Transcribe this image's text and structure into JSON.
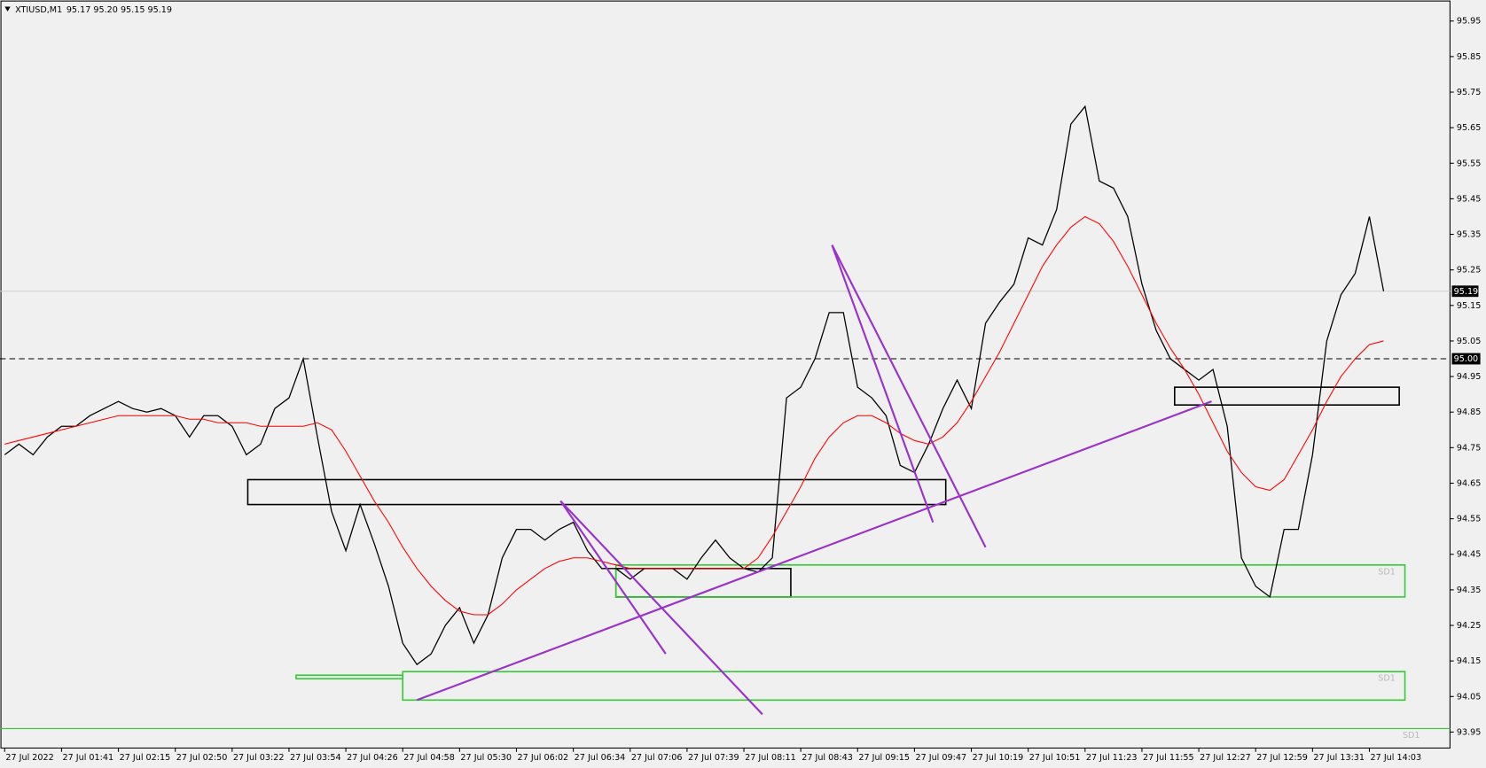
{
  "chart_data": {
    "type": "line",
    "title": "XTIUSD,M1",
    "subtitle": "95.17 95.20 95.15 95.19",
    "xlim": [
      -0.33,
      101.67
    ],
    "ylim": [
      93.905,
      96.009
    ],
    "yticks": [
      95.95,
      95.85,
      95.75,
      95.65,
      95.55,
      95.45,
      95.35,
      95.25,
      95.15,
      95.05,
      94.95,
      94.85,
      94.75,
      94.65,
      94.55,
      94.45,
      94.35,
      94.25,
      94.15,
      94.05,
      93.95
    ],
    "xticks": [
      {
        "value": 0,
        "label": "27 Jul 2022"
      },
      {
        "value": 4,
        "label": "27 Jul 01:41"
      },
      {
        "value": 8,
        "label": "27 Jul 02:15"
      },
      {
        "value": 12,
        "label": "27 Jul 02:50"
      },
      {
        "value": 16,
        "label": "27 Jul 03:22"
      },
      {
        "value": 20,
        "label": "27 Jul 03:54"
      },
      {
        "value": 24,
        "label": "27 Jul 04:26"
      },
      {
        "value": 28,
        "label": "27 Jul 04:58"
      },
      {
        "value": 32,
        "label": "27 Jul 05:30"
      },
      {
        "value": 36,
        "label": "27 Jul 06:02"
      },
      {
        "value": 40,
        "label": "27 Jul 06:34"
      },
      {
        "value": 44,
        "label": "27 Jul 07:06"
      },
      {
        "value": 48,
        "label": "27 Jul 07:39"
      },
      {
        "value": 52,
        "label": "27 Jul 08:11"
      },
      {
        "value": 56,
        "label": "27 Jul 08:43"
      },
      {
        "value": 60,
        "label": "27 Jul 09:15"
      },
      {
        "value": 64,
        "label": "27 Jul 09:47"
      },
      {
        "value": 68,
        "label": "27 Jul 10:19"
      },
      {
        "value": 72,
        "label": "27 Jul 10:51"
      },
      {
        "value": 76,
        "label": "27 Jul 11:23"
      },
      {
        "value": 80,
        "label": "27 Jul 11:55"
      },
      {
        "value": 84,
        "label": "27 Jul 12:27"
      },
      {
        "value": 88,
        "label": "27 Jul 12:59"
      },
      {
        "value": 92,
        "label": "27 Jul 13:31"
      },
      {
        "value": 96,
        "label": "27 Jul 14:03"
      }
    ],
    "series": [
      {
        "color": "#000000",
        "values": [
          94.73,
          94.76,
          94.73,
          94.78,
          94.81,
          94.81,
          94.84,
          94.86,
          94.88,
          94.86,
          94.85,
          94.86,
          94.84,
          94.78,
          94.84,
          94.84,
          94.81,
          94.73,
          94.76,
          94.86,
          94.89,
          95.0,
          94.78,
          94.57,
          94.46,
          94.59,
          94.48,
          94.36,
          94.2,
          94.14,
          94.17,
          94.25,
          94.3,
          94.2,
          94.28,
          94.44,
          94.52,
          94.52,
          94.49,
          94.52,
          94.54,
          94.46,
          94.41,
          94.41,
          94.38,
          94.41,
          94.41,
          94.41,
          94.38,
          94.44,
          94.49,
          94.44,
          94.41,
          94.4,
          94.44,
          94.89,
          94.92,
          95.0,
          95.13,
          95.13,
          94.92,
          94.89,
          94.84,
          94.7,
          94.68,
          94.76,
          94.86,
          94.94,
          94.86,
          95.1,
          95.16,
          95.21,
          95.34,
          95.32,
          95.42,
          95.66,
          95.71,
          95.5,
          95.48,
          95.4,
          95.21,
          95.08,
          95.0,
          94.97,
          94.94,
          94.97,
          94.81,
          94.44,
          94.36,
          94.33,
          94.52,
          94.52,
          94.73,
          95.05,
          95.18,
          95.24,
          95.4,
          95.19
        ]
      },
      {
        "color": "#ff0000",
        "values": [
          94.76,
          94.77,
          94.78,
          94.79,
          94.8,
          94.81,
          94.82,
          94.83,
          94.84,
          94.84,
          94.84,
          94.84,
          94.84,
          94.83,
          94.83,
          94.82,
          94.82,
          94.82,
          94.81,
          94.81,
          94.81,
          94.81,
          94.82,
          94.8,
          94.74,
          94.67,
          94.6,
          94.54,
          94.47,
          94.41,
          94.36,
          94.32,
          94.29,
          94.28,
          94.28,
          94.31,
          94.35,
          94.38,
          94.41,
          94.43,
          94.44,
          94.44,
          94.43,
          94.42,
          94.41,
          94.41,
          94.41,
          94.41,
          94.41,
          94.41,
          94.41,
          94.41,
          94.41,
          94.44,
          94.5,
          94.57,
          94.64,
          94.72,
          94.78,
          94.82,
          94.84,
          94.84,
          94.82,
          94.79,
          94.77,
          94.76,
          94.78,
          94.82,
          94.88,
          94.95,
          95.02,
          95.1,
          95.18,
          95.26,
          95.32,
          95.37,
          95.4,
          95.38,
          95.33,
          95.26,
          95.18,
          95.1,
          95.03,
          94.97,
          94.9,
          94.82,
          94.74,
          94.68,
          94.64,
          94.63,
          94.66,
          94.73,
          94.8,
          94.88,
          94.95,
          95.0,
          95.04,
          95.05
        ]
      }
    ],
    "zones": [
      {
        "x": [
          17.1,
          66.2
        ],
        "y": [
          94.59,
          94.66
        ],
        "color": "#000000"
      },
      {
        "x": [
          43,
          55.3
        ],
        "y": [
          94.33,
          94.41
        ],
        "color": "#000000"
      },
      {
        "x": [
          82.3,
          98.1
        ],
        "y": [
          94.87,
          94.92
        ],
        "color": "#000000"
      },
      {
        "x": [
          43,
          98.5
        ],
        "y": [
          94.33,
          94.42
        ],
        "color": "#32cd32",
        "label": "SD1"
      },
      {
        "x": [
          28,
          98.5
        ],
        "y": [
          94.04,
          94.12
        ],
        "color": "#32cd32",
        "label": "SD1"
      },
      {
        "x": [
          20.5,
          28
        ],
        "y": [
          94.1,
          94.11
        ],
        "color": "#32cd32"
      }
    ],
    "trendlines": [
      {
        "x": [
          29,
          84.9
        ],
        "y": [
          94.04,
          94.88
        ]
      },
      {
        "x": [
          39.1,
          46.5
        ],
        "y": [
          94.6,
          94.17
        ]
      },
      {
        "x": [
          39.1,
          53.3
        ],
        "y": [
          94.6,
          94.0
        ]
      },
      {
        "x": [
          58.2,
          69
        ],
        "y": [
          95.32,
          94.47
        ]
      },
      {
        "x": [
          58.2,
          65.3
        ],
        "y": [
          95.32,
          94.54
        ]
      }
    ],
    "trend_color": "#9932cc",
    "hlines": [
      {
        "value": 95,
        "label": "95.00",
        "color": "#000000",
        "dashed": true
      },
      {
        "value": 93.96,
        "color": "#32cd32",
        "label": "SD1"
      }
    ],
    "last": 95.19
  }
}
